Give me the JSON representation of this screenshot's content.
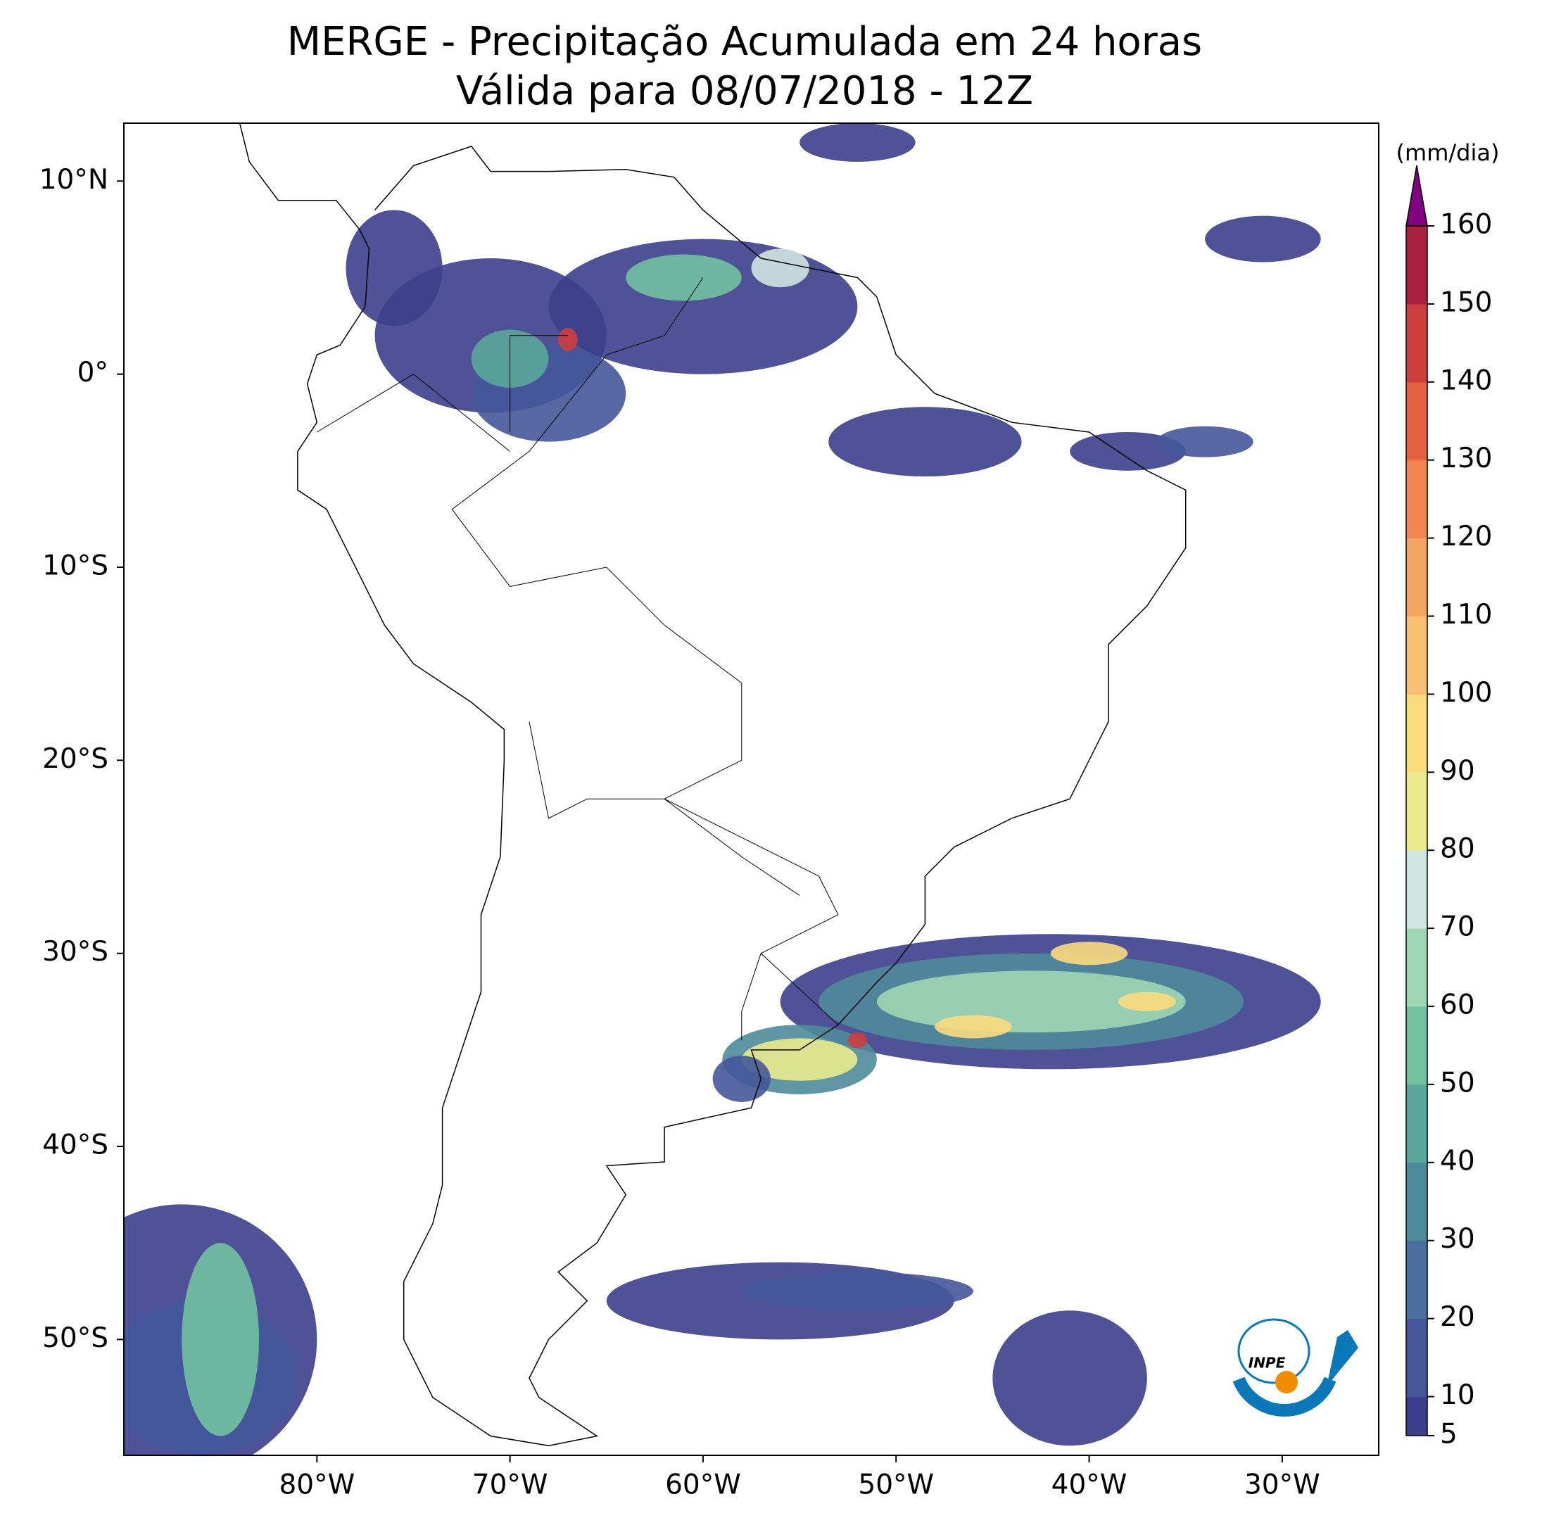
{
  "title": [
    "MERGE - Precipitação Acumulada em 24 horas",
    "Válida para 08/07/2018 - 12Z"
  ],
  "map": {
    "lon_range": [
      -90,
      -25
    ],
    "lat_range": [
      -56,
      13
    ],
    "lon_ticks": [
      {
        "value": -80,
        "label": "80°W"
      },
      {
        "value": -70,
        "label": "70°W"
      },
      {
        "value": -60,
        "label": "60°W"
      },
      {
        "value": -50,
        "label": "50°W"
      },
      {
        "value": -40,
        "label": "40°W"
      },
      {
        "value": -30,
        "label": "30°W"
      }
    ],
    "lat_ticks": [
      {
        "value": 10,
        "label": "10°N"
      },
      {
        "value": 0,
        "label": "0°"
      },
      {
        "value": -10,
        "label": "10°S"
      },
      {
        "value": -20,
        "label": "20°S"
      },
      {
        "value": -30,
        "label": "30°S"
      },
      {
        "value": -40,
        "label": "40°S"
      },
      {
        "value": -50,
        "label": "50°S"
      }
    ]
  },
  "colorbar": {
    "label": "(mm/dia)",
    "ticks": [
      5,
      10,
      20,
      30,
      40,
      50,
      60,
      70,
      80,
      90,
      100,
      110,
      120,
      130,
      140,
      150,
      160
    ]
  },
  "logo": "INPE"
}
